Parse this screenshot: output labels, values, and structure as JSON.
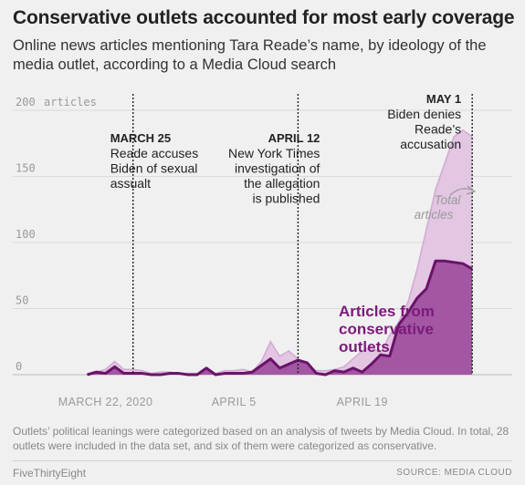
{
  "header": {
    "title": "Conservative outlets accounted for most early coverage",
    "subtitle": "Online news articles mentioning Tara Reade’s name, by ideology of the media outlet, according to a Media Cloud search"
  },
  "chart_data": {
    "type": "area",
    "x_start": "2020-03-20",
    "x_ticks": [
      {
        "day": 2,
        "label": "MARCH 22, 2020"
      },
      {
        "day": 16,
        "label": "APRIL 5"
      },
      {
        "day": 30,
        "label": "APRIL 19"
      }
    ],
    "ylim": [
      0,
      200
    ],
    "y_ticks": [
      {
        "value": 200,
        "label": "200"
      },
      {
        "value": 150,
        "label": "150"
      },
      {
        "value": 100,
        "label": "100"
      },
      {
        "value": 50,
        "label": "50"
      },
      {
        "value": 0,
        "label": "0"
      }
    ],
    "y_unit_label": "articles",
    "x": [
      0,
      1,
      2,
      3,
      4,
      5,
      6,
      7,
      8,
      9,
      10,
      11,
      12,
      13,
      14,
      15,
      16,
      17,
      18,
      19,
      20,
      21,
      22,
      23,
      24,
      25,
      26,
      27,
      28,
      29,
      30,
      31,
      32,
      33,
      34,
      35,
      36,
      37,
      38,
      39,
      40,
      41,
      42
    ],
    "series": [
      {
        "name": "Total articles",
        "color": "#dcb6dc",
        "values": [
          0,
          2,
          4,
          10,
          4,
          4,
          3,
          1,
          2,
          2,
          1,
          1,
          1,
          3,
          1,
          3,
          3,
          4,
          2,
          10,
          25,
          14,
          18,
          12,
          7,
          3,
          3,
          4,
          6,
          12,
          18,
          21,
          16,
          30,
          40,
          55,
          80,
          110,
          140,
          160,
          180,
          185,
          180
        ]
      },
      {
        "name": "Articles from conservative outlets",
        "color": "#7b1a7b",
        "values": [
          0,
          2,
          1,
          6,
          1,
          1,
          1,
          0,
          0,
          1,
          1,
          0,
          0,
          5,
          0,
          1,
          1,
          1,
          2,
          7,
          12,
          5,
          8,
          11,
          9,
          1,
          0,
          3,
          2,
          5,
          2,
          8,
          15,
          14,
          38,
          47,
          58,
          65,
          86,
          86,
          85,
          84,
          80
        ]
      }
    ],
    "events": [
      {
        "day": 5,
        "head": "MARCH 25",
        "text": [
          "Reade accuses",
          "Biden of sexual",
          "assualt"
        ]
      },
      {
        "day": 23,
        "head": "APRIL 12",
        "text": [
          "New York Times",
          "investigation of",
          "the allegation",
          "is published"
        ]
      },
      {
        "day": 42,
        "head": "MAY 1",
        "text": [
          "Biden denies",
          "Reade’s",
          "accusation"
        ]
      }
    ],
    "series_labels": {
      "total": [
        "Total",
        "articles"
      ],
      "conservative": [
        "Articles from",
        "conservative",
        "outlets"
      ]
    },
    "grid": true
  },
  "footnote": "Outlets’ political leanings were categorized based on an analysis of tweets by Media Cloud. In total, 28 outlets were included in the data set, and six of them were categorized as conservative.",
  "brand": "FiveThirtyEight",
  "source": "SOURCE: MEDIA CLOUD"
}
